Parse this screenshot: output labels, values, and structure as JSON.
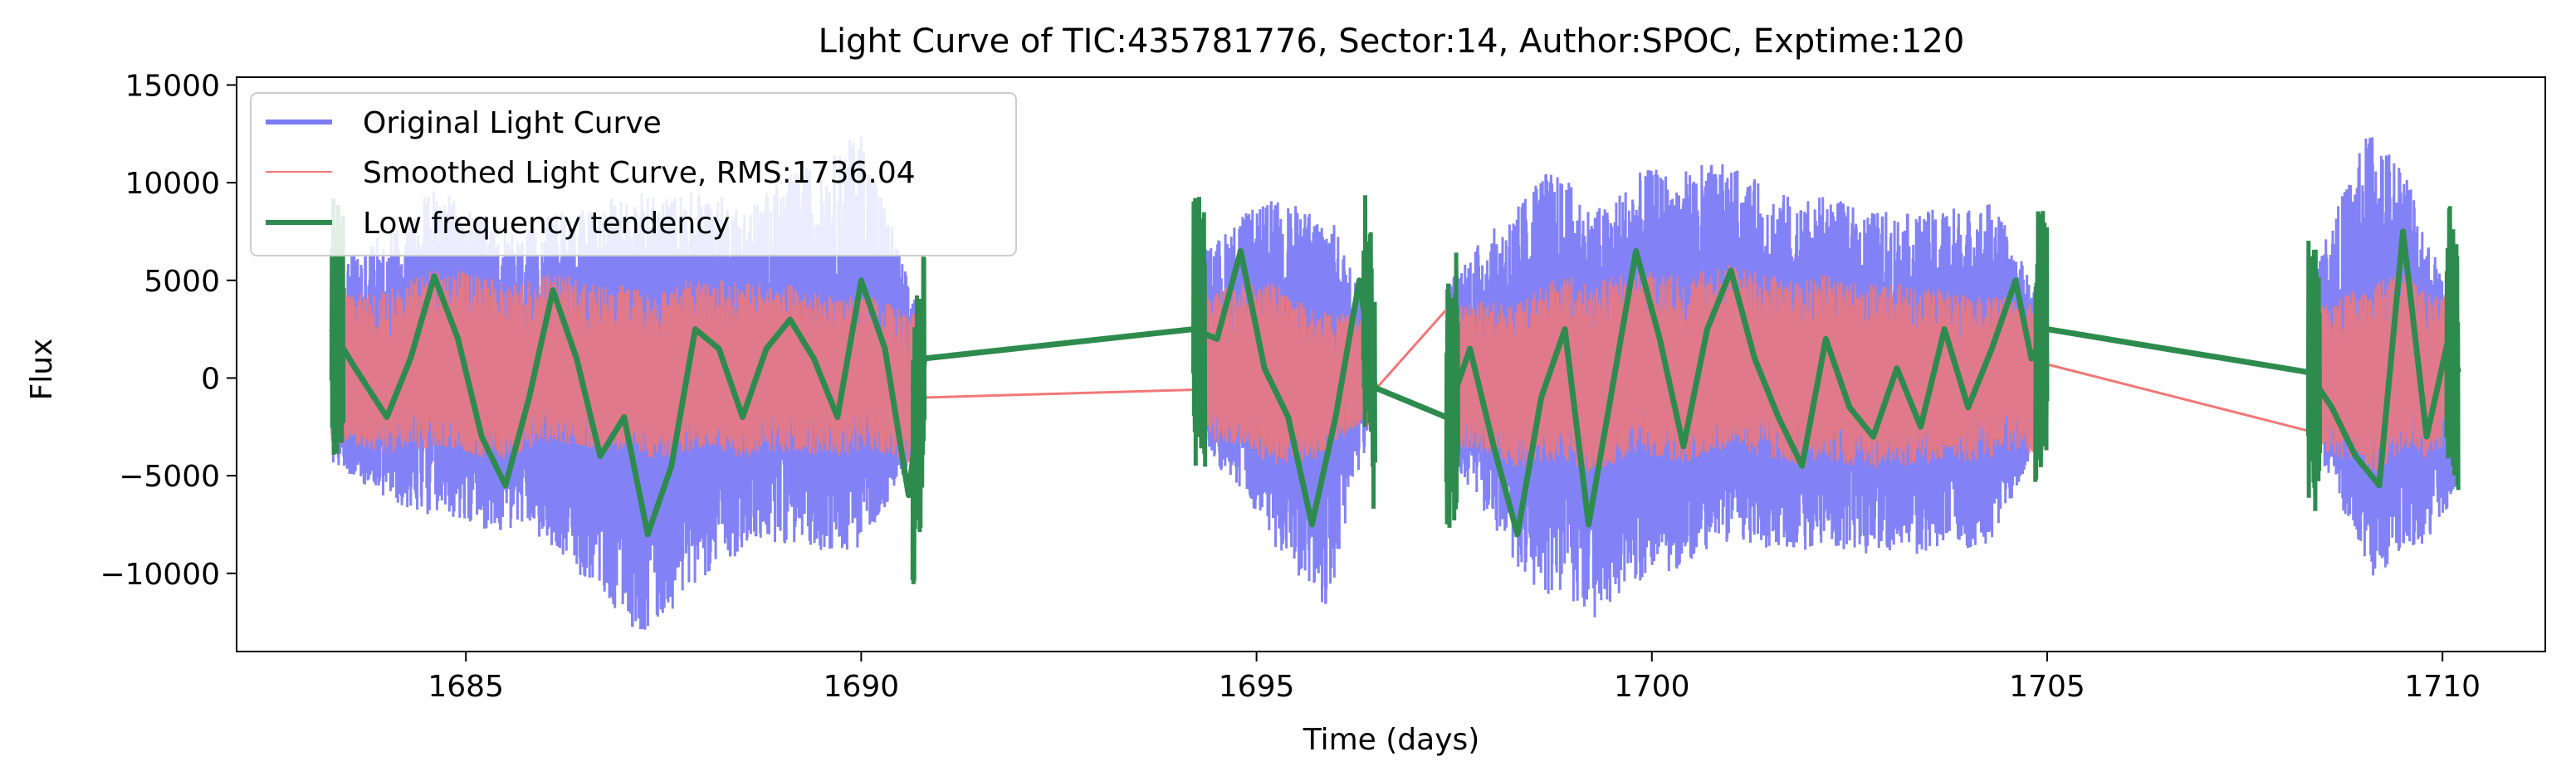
{
  "chart_data": {
    "type": "line",
    "title": "Light Curve of TIC:435781776, Sector:14, Author:SPOC, Exptime:120",
    "xlabel": "Time (days)",
    "ylabel": "Flux",
    "xlim": [
      1682.1,
      1711.3
    ],
    "ylim": [
      -14000,
      15400
    ],
    "xticks": [
      1685,
      1690,
      1695,
      1700,
      1705,
      1710
    ],
    "xtick_labels": [
      "1685",
      "1690",
      "1695",
      "1700",
      "1705",
      "1710"
    ],
    "yticks": [
      -10000,
      -5000,
      0,
      5000,
      10000,
      15000
    ],
    "ytick_labels": [
      "−10000",
      "−5000",
      "0",
      "5000",
      "10000",
      "15000"
    ],
    "grid": false,
    "legend_position": "top-left",
    "observing_segments": [
      [
        1683.3,
        1690.8
      ],
      [
        1694.2,
        1696.5
      ],
      [
        1697.4,
        1705.0
      ],
      [
        1708.3,
        1710.2
      ]
    ],
    "series": [
      {
        "name": "Original Light Curve",
        "color": "#7b7bf5",
        "style": "noisy",
        "envelope": [
          [
            1683.3,
            -4500,
            5500
          ],
          [
            1684.6,
            -7500,
            9500
          ],
          [
            1685.7,
            -7500,
            7500
          ],
          [
            1687.2,
            -12800,
            10000
          ],
          [
            1688.6,
            -8500,
            9000
          ],
          [
            1690.0,
            -9000,
            12500
          ],
          [
            1690.8,
            -3000,
            3000
          ],
          [
            1694.2,
            -3000,
            6000
          ],
          [
            1695.2,
            -8500,
            9200
          ],
          [
            1695.9,
            -11500,
            9000
          ],
          [
            1696.5,
            -2000,
            2000
          ],
          [
            1697.4,
            -4000,
            5000
          ],
          [
            1698.6,
            -11000,
            10800
          ],
          [
            1699.4,
            -12000,
            9000
          ],
          [
            1700.0,
            -10500,
            10500
          ],
          [
            1700.6,
            -9000,
            11000
          ],
          [
            1701.8,
            -8500,
            9500
          ],
          [
            1703.2,
            -9000,
            8500
          ],
          [
            1704.3,
            -8500,
            9000
          ],
          [
            1705.0,
            -3000,
            3000
          ],
          [
            1708.3,
            -2500,
            5000
          ],
          [
            1709.1,
            -10000,
            13500
          ],
          [
            1709.6,
            -9000,
            10000
          ],
          [
            1710.2,
            -6500,
            3000
          ]
        ]
      },
      {
        "name": "Smoothed Light Curve, RMS:1736.04",
        "color": "#f07878",
        "style": "noisy",
        "envelope": [
          [
            1683.3,
            -3500,
            4000
          ],
          [
            1684.8,
            -4000,
            5500
          ],
          [
            1686.5,
            -3500,
            5000
          ],
          [
            1688.5,
            -4000,
            5000
          ],
          [
            1690.8,
            -4000,
            3500
          ],
          [
            1694.2,
            -3000,
            4000
          ],
          [
            1695.2,
            -4500,
            5000
          ],
          [
            1696.5,
            -2500,
            2500
          ],
          [
            1697.4,
            -3500,
            3500
          ],
          [
            1699.0,
            -4500,
            5200
          ],
          [
            1701.0,
            -4000,
            5500
          ],
          [
            1703.0,
            -4500,
            5000
          ],
          [
            1705.0,
            -4000,
            3500
          ],
          [
            1708.3,
            -3500,
            3500
          ],
          [
            1709.2,
            -4500,
            5500
          ],
          [
            1710.2,
            -3500,
            4000
          ]
        ],
        "gap_links": [
          [
            [
              1690.8,
              -1000
            ],
            [
              1694.2,
              -600
            ]
          ],
          [
            [
              1696.5,
              -600
            ],
            [
              1697.4,
              3500
            ]
          ],
          [
            [
              1705.0,
              700
            ],
            [
              1708.3,
              -2700
            ]
          ]
        ]
      },
      {
        "name": "Low frequency tendency",
        "color": "#2e8b4e",
        "style": "smooth",
        "x": [
          1683.3,
          1683.6,
          1684.0,
          1684.3,
          1684.6,
          1684.9,
          1685.2,
          1685.5,
          1685.8,
          1686.1,
          1686.4,
          1686.7,
          1687.0,
          1687.3,
          1687.6,
          1687.9,
          1688.2,
          1688.5,
          1688.8,
          1689.1,
          1689.4,
          1689.7,
          1690.0,
          1690.3,
          1690.6,
          1690.8,
          1694.2,
          1694.5,
          1694.8,
          1695.1,
          1695.4,
          1695.7,
          1696.0,
          1696.3,
          1696.5,
          1697.4,
          1697.7,
          1698.0,
          1698.3,
          1698.6,
          1698.9,
          1699.2,
          1699.5,
          1699.8,
          1700.1,
          1700.4,
          1700.7,
          1701.0,
          1701.3,
          1701.6,
          1701.9,
          1702.2,
          1702.5,
          1702.8,
          1703.1,
          1703.4,
          1703.7,
          1704.0,
          1704.3,
          1704.6,
          1704.8,
          1705.0,
          1708.3,
          1708.6,
          1708.9,
          1709.2,
          1709.5,
          1709.8,
          1710.1,
          1710.2
        ],
        "y": [
          2500,
          500,
          -2000,
          1000,
          5200,
          2000,
          -3000,
          -5500,
          -1000,
          4500,
          1000,
          -4000,
          -2000,
          -8000,
          -4500,
          2500,
          1500,
          -2000,
          1500,
          3000,
          1000,
          -2000,
          5000,
          1500,
          -6000,
          1000,
          2500,
          2000,
          6500,
          500,
          -2000,
          -7500,
          -2000,
          5000,
          -500,
          -2000,
          1500,
          -3500,
          -8000,
          -1000,
          2500,
          -7500,
          -500,
          6500,
          2000,
          -3500,
          2500,
          5500,
          1000,
          -2000,
          -4500,
          2000,
          -1500,
          -3000,
          500,
          -2500,
          2500,
          -1500,
          1500,
          5000,
          1000,
          2500,
          300,
          -1500,
          -4000,
          -5500,
          7500,
          -3000,
          2500,
          300
        ],
        "jitter_edges": true
      }
    ]
  }
}
